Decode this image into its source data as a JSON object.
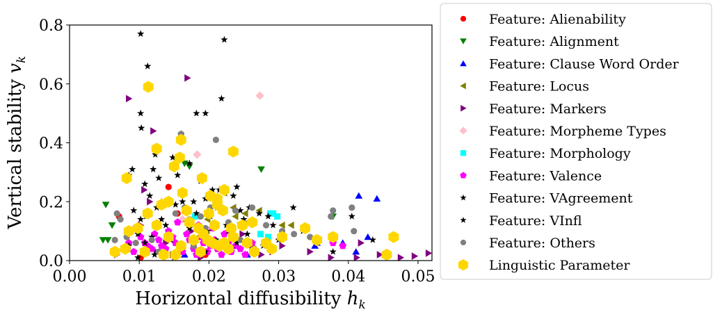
{
  "chart_data": {
    "type": "scatter",
    "xlabel_main": "Horizontal diffusibility ",
    "xlabel_var": "h",
    "xlabel_sub": "k",
    "ylabel_main": "Vertical stability ",
    "ylabel_var": "v",
    "ylabel_sub": "k",
    "xlim": [
      0.0,
      0.052
    ],
    "ylim": [
      0.0,
      0.8
    ],
    "x_ticks": [
      0.0,
      0.01,
      0.02,
      0.03,
      0.04,
      0.05
    ],
    "x_tick_labels": [
      "0.00",
      "0.01",
      "0.02",
      "0.03",
      "0.04",
      "0.05"
    ],
    "y_ticks": [
      0.0,
      0.2,
      0.4,
      0.6,
      0.8
    ],
    "y_tick_labels": [
      "0.0",
      "0.2",
      "0.4",
      "0.6",
      "0.8"
    ],
    "grid": false,
    "legend_placement": "outside-right",
    "series": [
      {
        "name": "Feature: Alienability",
        "marker": "circle",
        "color": "#ff0000",
        "points": [
          [
            0.0071,
            0.15
          ],
          [
            0.0142,
            0.25
          ],
          [
            0.0155,
            0.16
          ],
          [
            0.0195,
            0.02
          ],
          [
            0.0102,
            0.01
          ]
        ]
      },
      {
        "name": "Feature: Alignment",
        "marker": "triangle-down",
        "color": "#008000",
        "points": [
          [
            0.0052,
            0.19
          ],
          [
            0.0048,
            0.07
          ],
          [
            0.0055,
            0.07
          ],
          [
            0.0061,
            0.12
          ],
          [
            0.0165,
            0.33
          ],
          [
            0.0172,
            0.32
          ],
          [
            0.0275,
            0.31
          ],
          [
            0.0378,
            0.15
          ],
          [
            0.0245,
            0.12
          ],
          [
            0.0178,
            0.06
          ]
        ]
      },
      {
        "name": "Feature: Clause Word Order",
        "marker": "triangle-up",
        "color": "#0000ff",
        "points": [
          [
            0.0415,
            0.22
          ],
          [
            0.0441,
            0.21
          ],
          [
            0.0428,
            0.08
          ],
          [
            0.0352,
            0.05
          ],
          [
            0.0411,
            0.03
          ],
          [
            0.0392,
            0.06
          ],
          [
            0.0355,
            0.06
          ],
          [
            0.0262,
            0.03
          ],
          [
            0.0255,
            0.02
          ],
          [
            0.0165,
            0.02
          ]
        ]
      },
      {
        "name": "Feature: Locus",
        "marker": "triangle-left",
        "color": "#808000",
        "points": [
          [
            0.0272,
            0.17
          ],
          [
            0.0305,
            0.12
          ],
          [
            0.0318,
            0.12
          ],
          [
            0.0235,
            0.18
          ],
          [
            0.0222,
            0.23
          ],
          [
            0.0252,
            0.16
          ],
          [
            0.0238,
            0.15
          ],
          [
            0.0198,
            0.14
          ],
          [
            0.0255,
            0.13
          ]
        ]
      },
      {
        "name": "Feature: Markers",
        "marker": "triangle-right",
        "color": "#800080",
        "points": [
          [
            0.0085,
            0.55
          ],
          [
            0.0169,
            0.62
          ],
          [
            0.012,
            0.44
          ],
          [
            0.0107,
            0.24
          ],
          [
            0.0115,
            0.2
          ],
          [
            0.0102,
            0.12
          ],
          [
            0.0175,
            0.1
          ],
          [
            0.0198,
            0.07
          ],
          [
            0.0232,
            0.1
          ],
          [
            0.0248,
            0.09
          ],
          [
            0.0262,
            0.05
          ],
          [
            0.0291,
            0.03
          ],
          [
            0.0305,
            0.05
          ],
          [
            0.0412,
            0.01
          ],
          [
            0.0445,
            0.02
          ],
          [
            0.0475,
            0.01
          ],
          [
            0.0495,
            0.015
          ],
          [
            0.0515,
            0.025
          ],
          [
            0.0345,
            0.03
          ],
          [
            0.0375,
            0.01
          ],
          [
            0.0418,
            0.06
          ],
          [
            0.0068,
            0.02
          ],
          [
            0.0082,
            0.04
          ],
          [
            0.0125,
            0.03
          ],
          [
            0.0148,
            0.02
          ],
          [
            0.0188,
            0.01
          ],
          [
            0.0215,
            0.04
          ],
          [
            0.0275,
            0.02
          ],
          [
            0.0138,
            0.06
          ],
          [
            0.016,
            0.05
          ]
        ]
      },
      {
        "name": "Feature: Morpheme Types",
        "marker": "diamond",
        "color": "#ffc0cb",
        "points": [
          [
            0.0273,
            0.56
          ],
          [
            0.0183,
            0.36
          ],
          [
            0.0162,
            0.14
          ]
        ]
      },
      {
        "name": "Feature: Morphology",
        "marker": "square",
        "color": "#00ffff",
        "points": [
          [
            0.0274,
            0.09
          ],
          [
            0.0288,
            0.16
          ],
          [
            0.0292,
            0.16
          ],
          [
            0.0298,
            0.15
          ],
          [
            0.018,
            0.15
          ],
          [
            0.0111,
            0.03
          ],
          [
            0.0285,
            0.08
          ]
        ]
      },
      {
        "name": "Feature: Valence",
        "marker": "pentagon",
        "color": "#ff00ff",
        "points": [
          [
            0.0095,
            0.11
          ],
          [
            0.0102,
            0.08
          ],
          [
            0.0108,
            0.06
          ],
          [
            0.0112,
            0.05
          ],
          [
            0.0118,
            0.04
          ],
          [
            0.0122,
            0.09
          ],
          [
            0.0128,
            0.07
          ],
          [
            0.0132,
            0.05
          ],
          [
            0.0138,
            0.04
          ],
          [
            0.0142,
            0.1
          ],
          [
            0.0148,
            0.08
          ],
          [
            0.0152,
            0.06
          ],
          [
            0.0158,
            0.05
          ],
          [
            0.0162,
            0.03
          ],
          [
            0.0168,
            0.09
          ],
          [
            0.0172,
            0.07
          ],
          [
            0.0178,
            0.04
          ],
          [
            0.0182,
            0.02
          ],
          [
            0.0188,
            0.08
          ],
          [
            0.0192,
            0.06
          ],
          [
            0.0198,
            0.03
          ],
          [
            0.0202,
            0.05
          ],
          [
            0.0208,
            0.07
          ],
          [
            0.0212,
            0.04
          ],
          [
            0.0218,
            0.02
          ],
          [
            0.0222,
            0.09
          ],
          [
            0.0228,
            0.06
          ],
          [
            0.0232,
            0.03
          ],
          [
            0.0238,
            0.05
          ],
          [
            0.0245,
            0.04
          ],
          [
            0.0252,
            0.02
          ],
          [
            0.0262,
            0.06
          ],
          [
            0.0378,
            0.06
          ],
          [
            0.0392,
            0.05
          ],
          [
            0.0085,
            0.06
          ],
          [
            0.0092,
            0.03
          ],
          [
            0.0125,
            0.12
          ],
          [
            0.0155,
            0.13
          ],
          [
            0.0185,
            0.12
          ],
          [
            0.0205,
            0.11
          ]
        ]
      },
      {
        "name": "Feature: VAgreement",
        "marker": "star",
        "color": "#000000",
        "points": [
          [
            0.0102,
            0.77
          ],
          [
            0.0222,
            0.75
          ],
          [
            0.0112,
            0.66
          ],
          [
            0.0102,
            0.5
          ],
          [
            0.0182,
            0.5
          ],
          [
            0.0195,
            0.5
          ],
          [
            0.0218,
            0.55
          ],
          [
            0.0103,
            0.45
          ],
          [
            0.016,
            0.43
          ],
          [
            0.009,
            0.31
          ],
          [
            0.0085,
            0.29
          ],
          [
            0.0123,
            0.36
          ],
          [
            0.012,
            0.31
          ],
          [
            0.0128,
            0.28
          ],
          [
            0.0148,
            0.35
          ],
          [
            0.0155,
            0.29
          ],
          [
            0.0172,
            0.33
          ],
          [
            0.0188,
            0.27
          ],
          [
            0.0205,
            0.24
          ],
          [
            0.0215,
            0.24
          ],
          [
            0.0235,
            0.22
          ],
          [
            0.024,
            0.25
          ],
          [
            0.0092,
            0.17
          ],
          [
            0.0102,
            0.14
          ],
          [
            0.011,
            0.15
          ],
          [
            0.0125,
            0.18
          ],
          [
            0.0132,
            0.14
          ],
          [
            0.0162,
            0.2
          ],
          [
            0.0178,
            0.2
          ],
          [
            0.0195,
            0.21
          ],
          [
            0.0258,
            0.18
          ],
          [
            0.0272,
            0.16
          ],
          [
            0.0285,
            0.15
          ],
          [
            0.0321,
            0.18
          ],
          [
            0.0335,
            0.1
          ],
          [
            0.0378,
            0.03
          ],
          [
            0.0435,
            0.07
          ],
          [
            0.0405,
            0.15
          ],
          [
            0.0085,
            0.05
          ],
          [
            0.0108,
            0.06
          ],
          [
            0.0142,
            0.09
          ],
          [
            0.0168,
            0.13
          ],
          [
            0.0202,
            0.15
          ],
          [
            0.0225,
            0.12
          ],
          [
            0.025,
            0.14
          ],
          [
            0.0068,
            0.03
          ],
          [
            0.0098,
            0.01
          ],
          [
            0.0122,
            0.02
          ],
          [
            0.015,
            0.01
          ],
          [
            0.0195,
            0.03
          ],
          [
            0.0232,
            0.04
          ],
          [
            0.0278,
            0.05
          ],
          [
            0.03,
            0.07
          ]
        ]
      },
      {
        "name": "Feature: VInfl",
        "marker": "star",
        "color": "#000000",
        "points": [
          [
            0.0108,
            0.26
          ],
          [
            0.0115,
            0.22
          ],
          [
            0.0132,
            0.2
          ],
          [
            0.0152,
            0.19
          ],
          [
            0.0182,
            0.16
          ],
          [
            0.0212,
            0.18
          ],
          [
            0.0245,
            0.17
          ],
          [
            0.0265,
            0.13
          ],
          [
            0.0292,
            0.12
          ],
          [
            0.0138,
            0.12
          ],
          [
            0.0172,
            0.11
          ],
          [
            0.0198,
            0.1
          ],
          [
            0.0228,
            0.1
          ],
          [
            0.0255,
            0.09
          ],
          [
            0.0098,
            0.09
          ],
          [
            0.0118,
            0.08
          ],
          [
            0.0145,
            0.07
          ],
          [
            0.021,
            0.07
          ],
          [
            0.024,
            0.06
          ]
        ]
      },
      {
        "name": "Feature: Others",
        "marker": "circle",
        "color": "#808080",
        "points": [
          [
            0.0065,
            0.07
          ],
          [
            0.0068,
            0.16
          ],
          [
            0.0073,
            0.14
          ],
          [
            0.016,
            0.43
          ],
          [
            0.021,
            0.41
          ],
          [
            0.0238,
            0.17
          ],
          [
            0.0262,
            0.18
          ],
          [
            0.0282,
            0.12
          ],
          [
            0.0305,
            0.1
          ],
          [
            0.0322,
            0.09
          ],
          [
            0.0355,
            0.06
          ],
          [
            0.0378,
            0.17
          ],
          [
            0.0375,
            0.15
          ],
          [
            0.0405,
            0.18
          ],
          [
            0.0408,
            0.1
          ],
          [
            0.0345,
            0.08
          ],
          [
            0.0202,
            0.18
          ],
          [
            0.0218,
            0.17
          ],
          [
            0.0228,
            0.13
          ],
          [
            0.0165,
            0.18
          ],
          [
            0.0152,
            0.16
          ],
          [
            0.0172,
            0.14
          ],
          [
            0.0188,
            0.15
          ],
          [
            0.0195,
            0.11
          ],
          [
            0.0082,
            0.08
          ],
          [
            0.0095,
            0.06
          ],
          [
            0.0118,
            0.07
          ],
          [
            0.0128,
            0.03
          ],
          [
            0.0178,
            0.05
          ],
          [
            0.0245,
            0.07
          ],
          [
            0.0265,
            0.04
          ]
        ]
      },
      {
        "name": "Linguistic Parameter",
        "marker": "hexagon",
        "color": "#ffd700",
        "points": [
          [
            0.0113,
            0.59
          ],
          [
            0.016,
            0.41
          ],
          [
            0.0125,
            0.38
          ],
          [
            0.0235,
            0.37
          ],
          [
            0.0158,
            0.35
          ],
          [
            0.015,
            0.32
          ],
          [
            0.0082,
            0.28
          ],
          [
            0.019,
            0.28
          ],
          [
            0.0142,
            0.2
          ],
          [
            0.0132,
            0.19
          ],
          [
            0.0112,
            0.16
          ],
          [
            0.0162,
            0.23
          ],
          [
            0.0202,
            0.22
          ],
          [
            0.0212,
            0.21
          ],
          [
            0.0222,
            0.24
          ],
          [
            0.0168,
            0.17
          ],
          [
            0.02,
            0.16
          ],
          [
            0.0212,
            0.19
          ],
          [
            0.0172,
            0.13
          ],
          [
            0.0185,
            0.11
          ],
          [
            0.0192,
            0.09
          ],
          [
            0.0208,
            0.12
          ],
          [
            0.022,
            0.17
          ],
          [
            0.0232,
            0.11
          ],
          [
            0.0248,
            0.12
          ],
          [
            0.0262,
            0.13
          ],
          [
            0.0125,
            0.12
          ],
          [
            0.0098,
            0.11
          ],
          [
            0.0085,
            0.1
          ],
          [
            0.0142,
            0.08
          ],
          [
            0.016,
            0.05
          ],
          [
            0.0178,
            0.07
          ],
          [
            0.0205,
            0.06
          ],
          [
            0.0215,
            0.05
          ],
          [
            0.0235,
            0.08
          ],
          [
            0.0255,
            0.06
          ],
          [
            0.0282,
            0.06
          ],
          [
            0.0305,
            0.08
          ],
          [
            0.0338,
            0.11
          ],
          [
            0.0355,
            0.07
          ],
          [
            0.0378,
            0.08
          ],
          [
            0.0465,
            0.08
          ],
          [
            0.0455,
            0.02
          ],
          [
            0.008,
            0.04
          ],
          [
            0.0065,
            0.03
          ],
          [
            0.0108,
            0.03
          ],
          [
            0.0135,
            0.02
          ],
          [
            0.0152,
            0.02
          ],
          [
            0.0188,
            0.03
          ],
          [
            0.0228,
            0.04
          ],
          [
            0.0265,
            0.03
          ],
          [
            0.029,
            0.04
          ],
          [
            0.0198,
            0.07
          ],
          [
            0.0222,
            0.06
          ]
        ]
      }
    ]
  }
}
